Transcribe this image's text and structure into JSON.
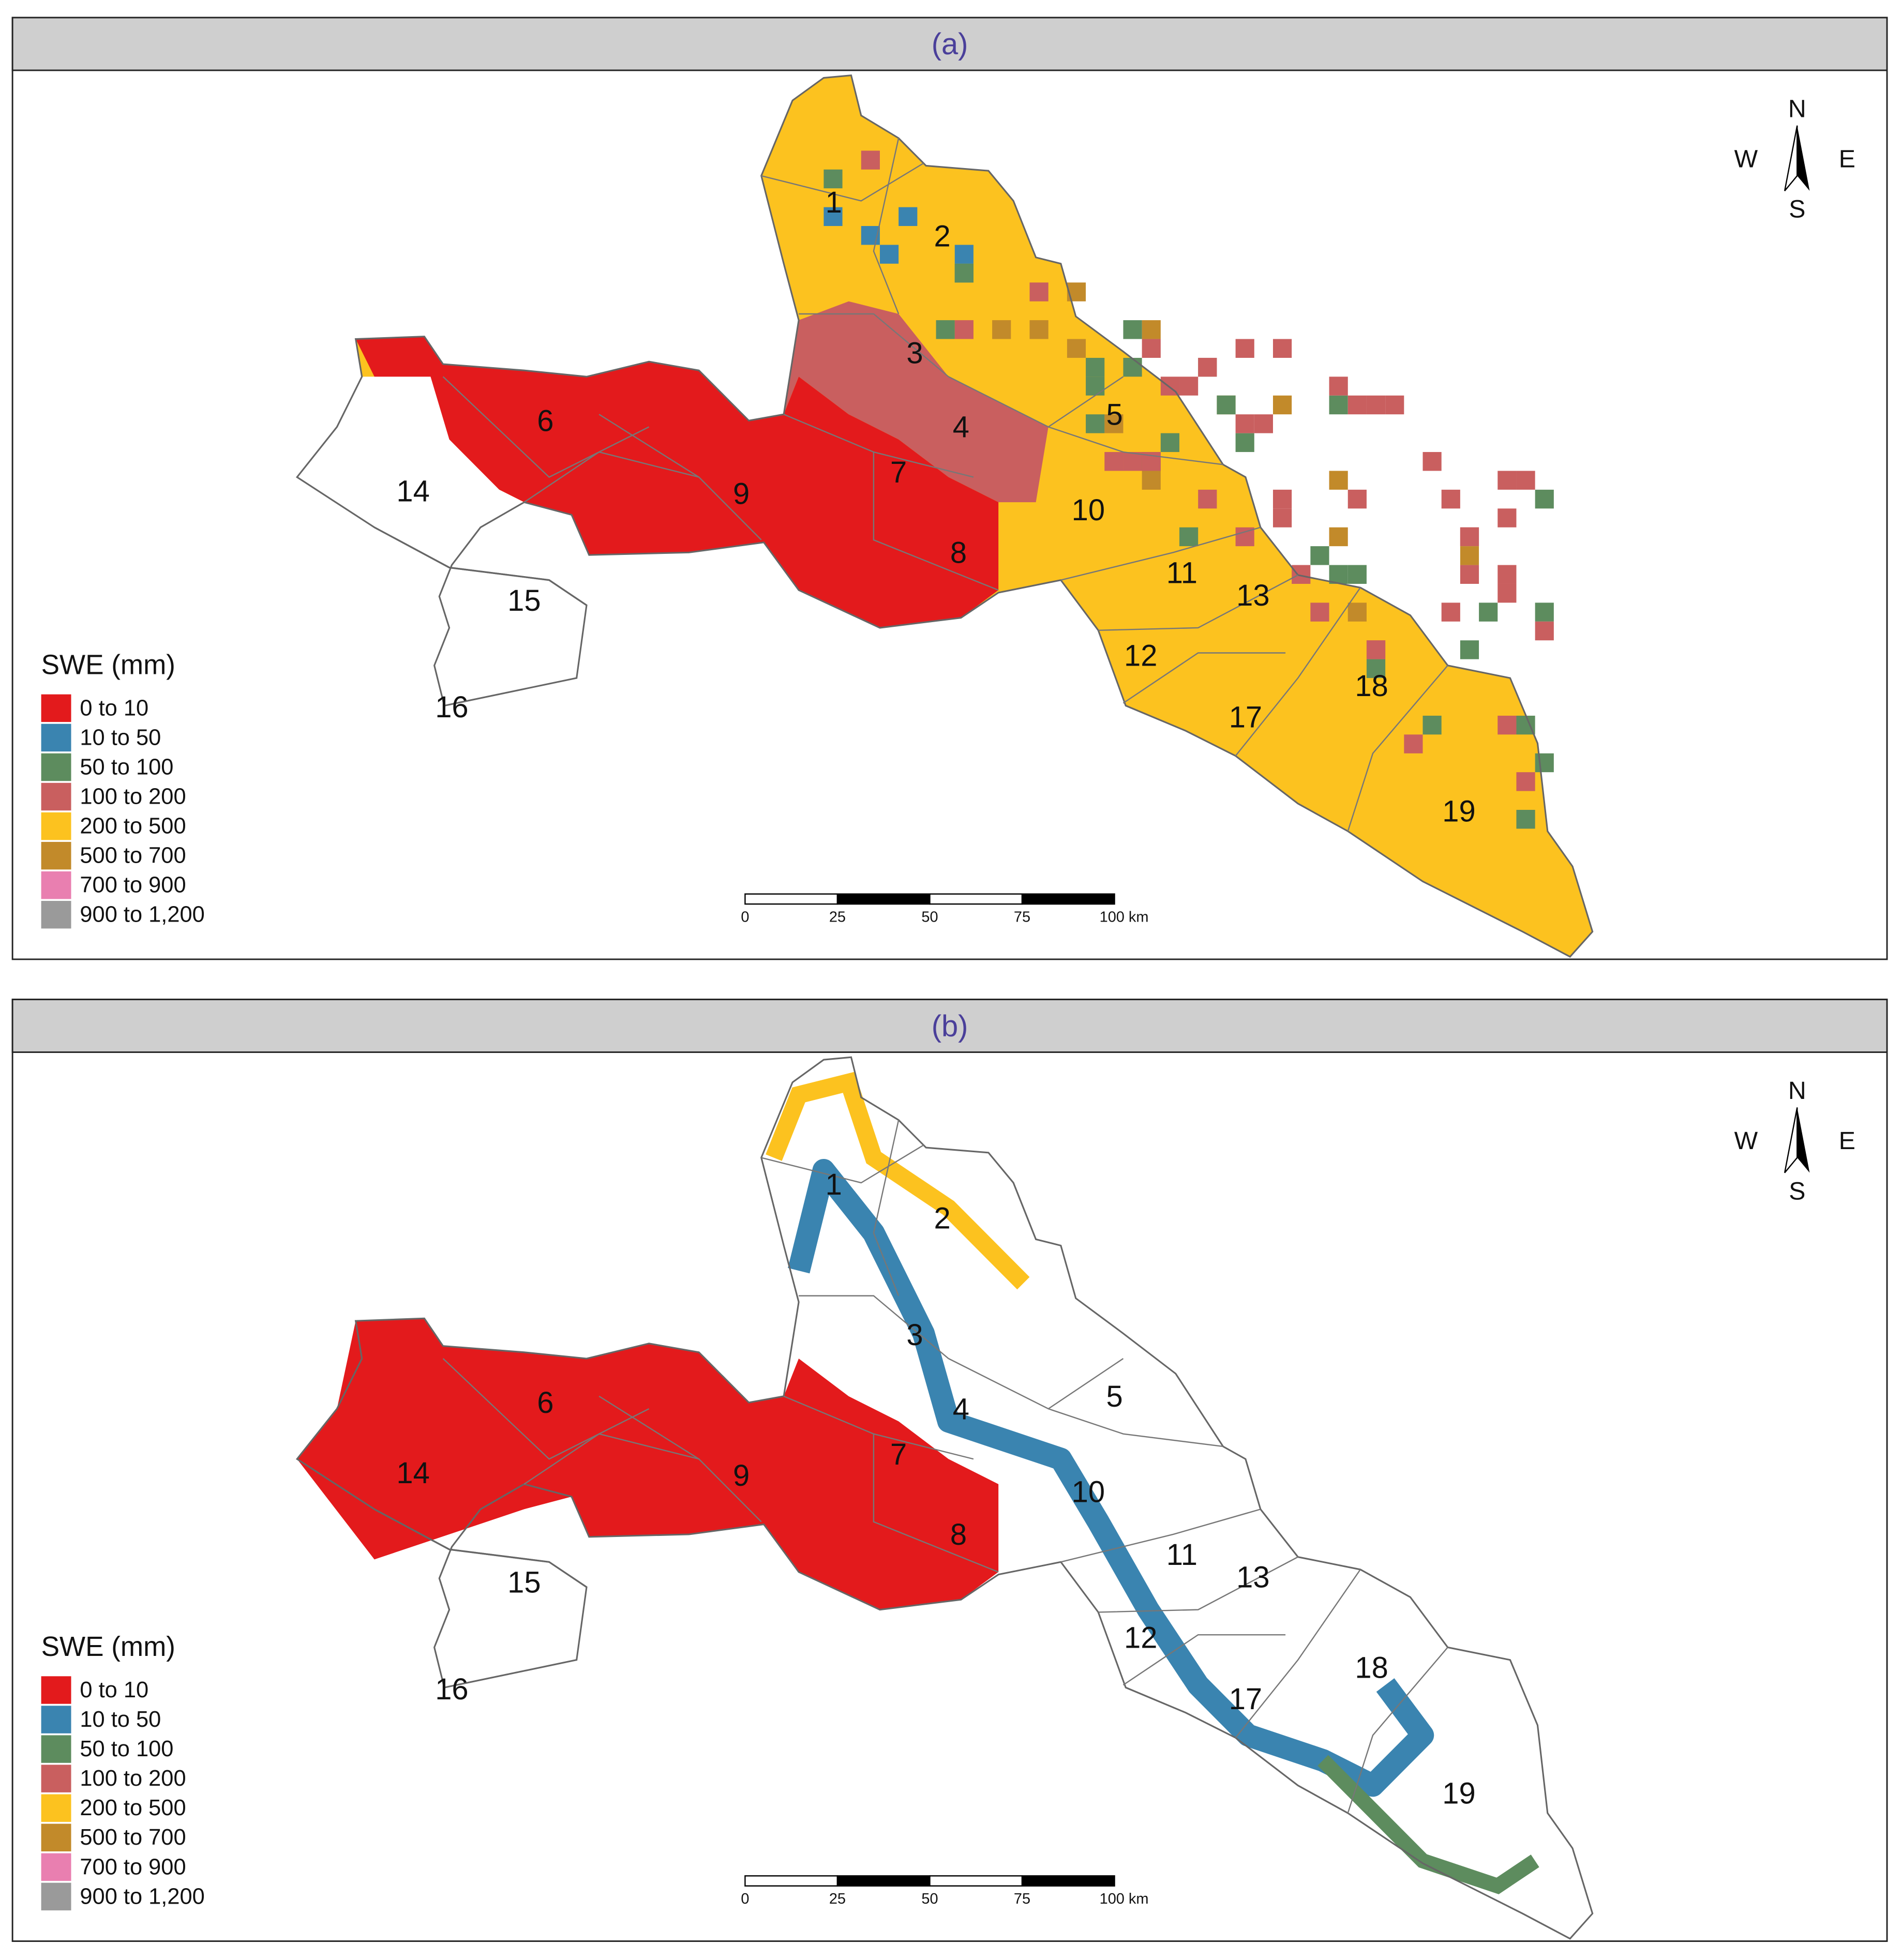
{
  "panels": [
    {
      "title": "(a)",
      "basins": [
        "1",
        "2",
        "3",
        "4",
        "5",
        "6",
        "7",
        "8",
        "9",
        "10",
        "11",
        "12",
        "13",
        "14",
        "15",
        "16",
        "17",
        "18",
        "19"
      ],
      "compass": {
        "n": "N",
        "s": "S",
        "w": "W",
        "e": "E"
      },
      "scale_bar": [
        "0",
        "25",
        "50",
        "75",
        "100 km"
      ],
      "legend": {
        "title": "SWE (mm)",
        "items": [
          {
            "label": "0 to 10",
            "color": "#e31a1c"
          },
          {
            "label": "10 to 50",
            "color": "#3a84b0"
          },
          {
            "label": "50 to 100",
            "color": "#5d8c5e"
          },
          {
            "label": "100 to 200",
            "color": "#c95f5f"
          },
          {
            "label": "200 to 500",
            "color": "#fcc21f"
          },
          {
            "label": "500 to 700",
            "color": "#c28a2a"
          },
          {
            "label": "700 to 900",
            "color": "#e97fb0"
          },
          {
            "label": "900 to 1,200",
            "color": "#9a9a9a"
          }
        ]
      }
    },
    {
      "title": "(b)",
      "basins": [
        "1",
        "2",
        "3",
        "4",
        "5",
        "6",
        "7",
        "8",
        "9",
        "10",
        "11",
        "12",
        "13",
        "14",
        "15",
        "16",
        "17",
        "18",
        "19"
      ],
      "compass": {
        "n": "N",
        "s": "S",
        "w": "W",
        "e": "E"
      },
      "scale_bar": [
        "0",
        "25",
        "50",
        "75",
        "100 km"
      ],
      "legend": {
        "title": "SWE (mm)",
        "items": [
          {
            "label": "0 to 10",
            "color": "#e31a1c"
          },
          {
            "label": "10 to 50",
            "color": "#3a84b0"
          },
          {
            "label": "50 to 100",
            "color": "#5d8c5e"
          },
          {
            "label": "100 to 200",
            "color": "#c95f5f"
          },
          {
            "label": "200 to 500",
            "color": "#fcc21f"
          },
          {
            "label": "500 to 700",
            "color": "#c28a2a"
          },
          {
            "label": "700 to 900",
            "color": "#e97fb0"
          },
          {
            "label": "900 to 1,200",
            "color": "#9a9a9a"
          }
        ]
      }
    }
  ]
}
